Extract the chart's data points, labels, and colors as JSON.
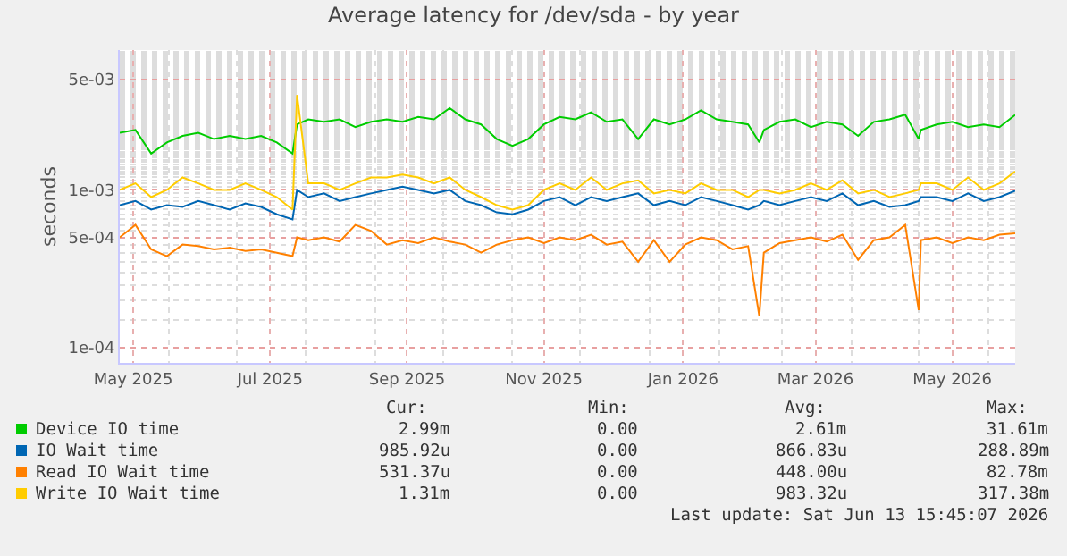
{
  "chart_data": {
    "type": "line",
    "title": "Average latency for /dev/sda - by year",
    "ylabel": "seconds",
    "x": [
      "2025-05-10",
      "2025-05-17",
      "2025-05-24",
      "2025-05-31",
      "2025-06-07",
      "2025-06-14",
      "2025-06-21",
      "2025-06-28",
      "2025-07-05",
      "2025-07-12",
      "2025-07-19",
      "2025-07-26",
      "2025-07-28",
      "2025-08-02",
      "2025-08-09",
      "2025-08-16",
      "2025-08-23",
      "2025-08-30",
      "2025-09-06",
      "2025-09-13",
      "2025-09-20",
      "2025-09-27",
      "2025-10-04",
      "2025-10-11",
      "2025-10-18",
      "2025-10-25",
      "2025-11-01",
      "2025-11-08",
      "2025-11-15",
      "2025-11-22",
      "2025-11-29",
      "2025-12-06",
      "2025-12-13",
      "2025-12-20",
      "2025-12-27",
      "2026-01-03",
      "2026-01-10",
      "2026-01-17",
      "2026-01-24",
      "2026-01-31",
      "2026-02-07",
      "2026-02-14",
      "2026-02-19",
      "2026-02-21",
      "2026-02-28",
      "2026-03-07",
      "2026-03-14",
      "2026-03-21",
      "2026-03-28",
      "2026-04-04",
      "2026-04-11",
      "2026-04-18",
      "2026-04-25",
      "2026-05-01",
      "2026-05-02",
      "2026-05-09",
      "2026-05-16",
      "2026-05-23",
      "2026-05-30",
      "2026-06-06",
      "2026-06-13"
    ],
    "series": [
      {
        "name": "Device IO time",
        "color": "#00cc00",
        "values": [
          0.0023,
          0.0024,
          0.0017,
          0.002,
          0.0022,
          0.0023,
          0.0021,
          0.0022,
          0.0021,
          0.0022,
          0.002,
          0.0017,
          0.0026,
          0.0028,
          0.0027,
          0.0028,
          0.0025,
          0.0027,
          0.0028,
          0.0027,
          0.0029,
          0.0028,
          0.0033,
          0.0028,
          0.0026,
          0.0021,
          0.0019,
          0.0021,
          0.0026,
          0.0029,
          0.0028,
          0.0031,
          0.0027,
          0.0028,
          0.0021,
          0.0028,
          0.0026,
          0.0028,
          0.0032,
          0.0028,
          0.0027,
          0.0026,
          0.002,
          0.0024,
          0.0027,
          0.0028,
          0.0025,
          0.0027,
          0.0026,
          0.0022,
          0.0027,
          0.0028,
          0.003,
          0.0021,
          0.0024,
          0.0026,
          0.0027,
          0.0025,
          0.0026,
          0.0025,
          0.00299
        ]
      },
      {
        "name": "IO Wait time",
        "color": "#0066b3",
        "values": [
          0.0008,
          0.00085,
          0.00075,
          0.0008,
          0.00078,
          0.00085,
          0.0008,
          0.00075,
          0.00082,
          0.00078,
          0.0007,
          0.00065,
          0.001,
          0.0009,
          0.00095,
          0.00085,
          0.0009,
          0.00095,
          0.001,
          0.00105,
          0.001,
          0.00095,
          0.001,
          0.00085,
          0.0008,
          0.00072,
          0.0007,
          0.00075,
          0.00085,
          0.0009,
          0.0008,
          0.0009,
          0.00085,
          0.0009,
          0.00095,
          0.0008,
          0.00085,
          0.0008,
          0.0009,
          0.00085,
          0.0008,
          0.00075,
          0.0008,
          0.00085,
          0.0008,
          0.00085,
          0.0009,
          0.00085,
          0.00095,
          0.0008,
          0.00085,
          0.00078,
          0.0008,
          0.00085,
          0.0009,
          0.0009,
          0.00085,
          0.00095,
          0.00085,
          0.0009,
          0.000986
        ]
      },
      {
        "name": "Read IO Wait time",
        "color": "#ff8000",
        "values": [
          0.0005,
          0.0006,
          0.00042,
          0.00038,
          0.00045,
          0.00044,
          0.00042,
          0.00043,
          0.00041,
          0.00042,
          0.0004,
          0.00038,
          0.0005,
          0.00048,
          0.0005,
          0.00047,
          0.0006,
          0.00055,
          0.00045,
          0.00048,
          0.00046,
          0.0005,
          0.00047,
          0.00045,
          0.0004,
          0.00045,
          0.00048,
          0.0005,
          0.00046,
          0.0005,
          0.00048,
          0.00052,
          0.00045,
          0.00047,
          0.00035,
          0.00048,
          0.00035,
          0.00045,
          0.0005,
          0.00048,
          0.00042,
          0.00044,
          0.000158,
          0.0004,
          0.00046,
          0.00048,
          0.0005,
          0.00047,
          0.00052,
          0.00036,
          0.00048,
          0.0005,
          0.0006,
          0.000173,
          0.00048,
          0.0005,
          0.00046,
          0.0005,
          0.00048,
          0.00052,
          0.000531
        ]
      },
      {
        "name": "Write IO Wait time",
        "color": "#ffcc00",
        "values": [
          0.001,
          0.0011,
          0.0009,
          0.001,
          0.0012,
          0.0011,
          0.001,
          0.001,
          0.0011,
          0.001,
          0.0009,
          0.00075,
          0.004,
          0.0011,
          0.0011,
          0.001,
          0.0011,
          0.0012,
          0.0012,
          0.00125,
          0.0012,
          0.0011,
          0.0012,
          0.001,
          0.0009,
          0.0008,
          0.00075,
          0.0008,
          0.001,
          0.0011,
          0.001,
          0.0012,
          0.001,
          0.0011,
          0.00115,
          0.00095,
          0.001,
          0.00095,
          0.0011,
          0.001,
          0.001,
          0.0009,
          0.001,
          0.001,
          0.00095,
          0.001,
          0.0011,
          0.001,
          0.00115,
          0.00095,
          0.001,
          0.0009,
          0.00095,
          0.001,
          0.0011,
          0.0011,
          0.001,
          0.0012,
          0.001,
          0.0011,
          0.00131
        ]
      }
    ],
    "log": "y",
    "ylim": [
      8e-05,
      0.0077
    ],
    "yticks": [
      {
        "value": 0.0001,
        "label": "1e-04"
      },
      {
        "value": 0.0005,
        "label": "5e-04"
      },
      {
        "value": 0.001,
        "label": "1e-03"
      },
      {
        "value": 0.005,
        "label": "5e-03"
      }
    ],
    "xlim": [
      "2025-05-10",
      "2026-06-13"
    ],
    "xticks": [
      {
        "value": "2025-05-16",
        "label": "May 2025"
      },
      {
        "value": "2025-07-16",
        "label": "Jul 2025"
      },
      {
        "value": "2025-09-15",
        "label": "Sep 2025"
      },
      {
        "value": "2025-11-15",
        "label": "Nov 2025"
      },
      {
        "value": "2026-01-16",
        "label": "Jan 2026"
      },
      {
        "value": "2026-03-16",
        "label": "Mar 2026"
      },
      {
        "value": "2026-05-16",
        "label": "May 2026"
      }
    ],
    "grid": true,
    "legend": "bottom",
    "marker": "none",
    "line_style": "solid",
    "annotations": [
      "Cur:",
      "Min:",
      "Avg:",
      "Max:",
      "2.99m",
      "0.00",
      "2.61m",
      "31.61m",
      "985.92u",
      "0.00",
      "866.83u",
      "288.89m",
      "531.37u",
      "0.00",
      "448.00u",
      "82.78m",
      "1.31m",
      "0.00",
      "983.32u",
      "317.38m",
      "Last update: Sat Jun 13 15:45:07 2026"
    ]
  }
}
